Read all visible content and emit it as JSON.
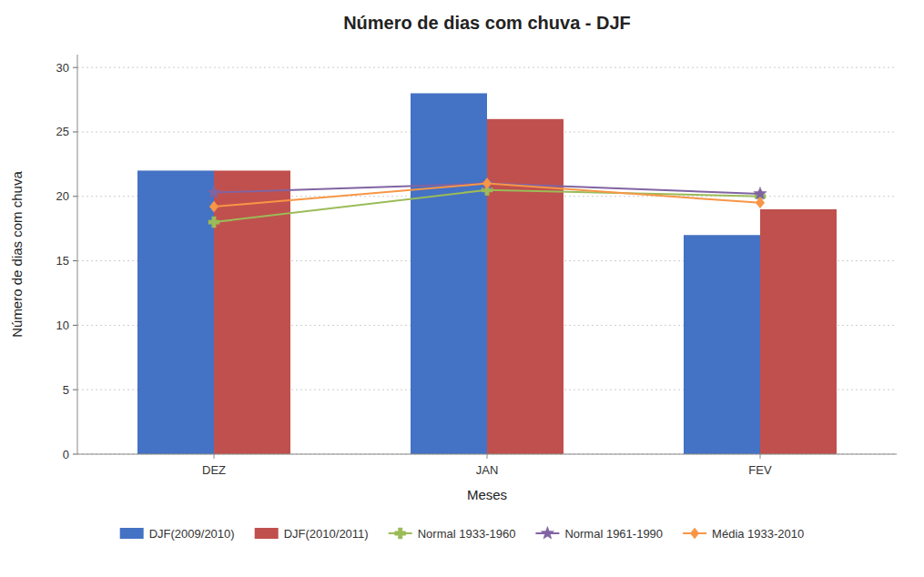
{
  "chart_data": {
    "type": "bar",
    "title": "Número de dias com chuva - DJF",
    "xlabel": "Meses",
    "ylabel": "Número de dias com chuva",
    "categories": [
      "DEZ",
      "JAN",
      "FEV"
    ],
    "series": [
      {
        "name": "DJF(2009/2010)",
        "type": "bar",
        "color": "#4472C4",
        "values": [
          22,
          28,
          17
        ]
      },
      {
        "name": "DJF(2010/2011)",
        "type": "bar",
        "color": "#C0504D",
        "values": [
          22,
          26,
          19
        ]
      },
      {
        "name": "Normal 1933-1960",
        "type": "line",
        "color": "#9BBB59",
        "marker": "plus",
        "line_style": "solid",
        "values": [
          18.0,
          20.5,
          20.0
        ]
      },
      {
        "name": "Normal 1961-1990",
        "type": "line",
        "color": "#8064A2",
        "marker": "star",
        "line_style": "solid",
        "values": [
          20.3,
          21.0,
          20.2
        ]
      },
      {
        "name": "Média 1933-2010",
        "type": "line",
        "color": "#F79646",
        "marker": "diamond",
        "line_style": "solid",
        "values": [
          19.2,
          21.0,
          19.5
        ]
      }
    ],
    "ylim": [
      0,
      31
    ],
    "yticks": [
      0,
      5,
      10,
      15,
      20,
      25,
      30
    ],
    "grid": true,
    "legend": "bottom"
  }
}
